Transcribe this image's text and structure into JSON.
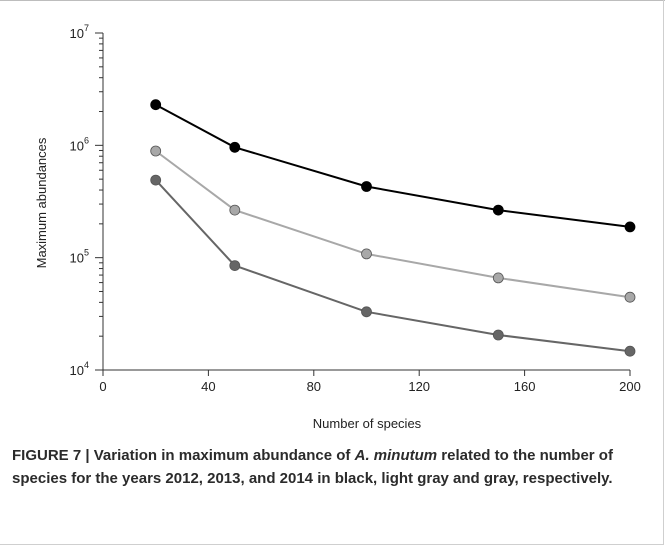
{
  "chart_data": {
    "type": "line",
    "x": [
      20,
      50,
      100,
      150,
      200
    ],
    "series": [
      {
        "color": "#000000",
        "values": [
          2300000,
          960000,
          430000,
          265000,
          188000
        ]
      },
      {
        "color": "#a8a8a8",
        "values": [
          890000,
          265000,
          108000,
          66000,
          44500
        ]
      },
      {
        "color": "#666666",
        "values": [
          490000,
          85000,
          33000,
          20500,
          14700
        ]
      }
    ],
    "xlabel": "Number of species",
    "ylabel": "Maximum abundances",
    "xlim": [
      0,
      200
    ],
    "ylim": [
      10000,
      10000000
    ],
    "yscale": "log",
    "xticks": [
      "0",
      "40",
      "80",
      "120",
      "160",
      "200"
    ],
    "yticks": [
      {
        "base": "10",
        "exp": "4"
      },
      {
        "base": "10",
        "exp": "5"
      },
      {
        "base": "10",
        "exp": "6"
      },
      {
        "base": "10",
        "exp": "7"
      }
    ],
    "grid": false,
    "legend": "none"
  },
  "caption": {
    "label": "FIGURE 7 | Variation in maximum abundance of ",
    "species": "A. minutum",
    "rest": " related to the number of species for the years 2012, 2013, and 2014 in black, light gray and gray, respectively."
  }
}
